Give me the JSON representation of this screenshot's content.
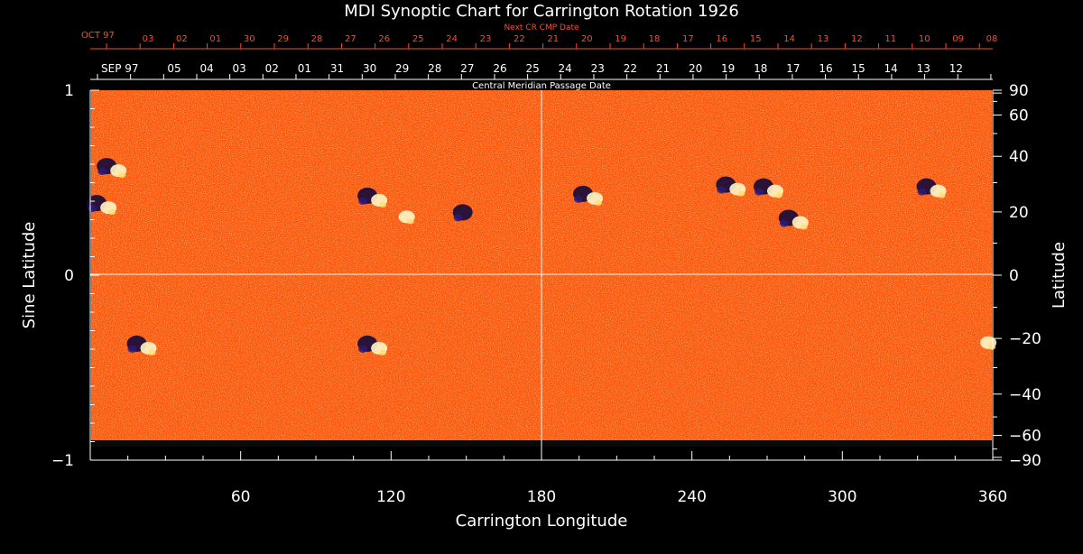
{
  "chart_data": {
    "type": "heatmap",
    "title": "MDI Synoptic Chart for Carrington Rotation 1926",
    "xlabel": "Carrington Longitude",
    "ylabel_left": "Sine Latitude",
    "ylabel_right": "Latitude",
    "xlim": [
      0,
      360
    ],
    "ylim": [
      -1,
      1
    ],
    "x_ticks": [
      60,
      120,
      180,
      240,
      300,
      360
    ],
    "y_ticks_left": [
      {
        "value": 1,
        "label": "1"
      },
      {
        "value": 0,
        "label": "0"
      },
      {
        "value": -1,
        "label": "−1"
      }
    ],
    "y_ticks_right_deg": [
      90,
      60,
      40,
      20,
      0,
      -20,
      -40,
      -60,
      -90
    ],
    "y_tick_labels_right": [
      "90",
      "60",
      "40",
      "20",
      "0",
      "−20",
      "−40",
      "−60",
      "−90"
    ],
    "top_axis_title": "Central Meridian Passage Date",
    "top_axis_month_label": "SEP 97",
    "top_axis_dates": [
      "05",
      "04",
      "03",
      "02",
      "01",
      "31",
      "30",
      "29",
      "28",
      "27",
      "26",
      "25",
      "24",
      "23",
      "22",
      "21",
      "20",
      "19",
      "18",
      "17",
      "16",
      "15",
      "14",
      "13",
      "12"
    ],
    "next_axis_title": "Next CR CMP Date",
    "next_axis_month_label": "OCT 97",
    "next_axis_dates": [
      "03",
      "02",
      "01",
      "30",
      "29",
      "28",
      "27",
      "26",
      "25",
      "24",
      "23",
      "22",
      "21",
      "20",
      "19",
      "18",
      "17",
      "16",
      "15",
      "14",
      "13",
      "12",
      "11",
      "10",
      "09",
      "08"
    ],
    "grid": "lines at longitude 180 and sine-latitude 0",
    "colors": {
      "background": "#000000",
      "field_base": "#ff5a0e",
      "negative_polarity": "#140a3a",
      "positive_polarity": "#fff6c8",
      "axis_main": "#ffffff",
      "axis_next": "#ff4a2a"
    },
    "active_regions": [
      {
        "lon": 8,
        "sinlat": 0.58,
        "polarity": "mixed"
      },
      {
        "lon": 4,
        "sinlat": 0.38,
        "polarity": "mixed"
      },
      {
        "lon": 112,
        "sinlat": 0.42,
        "polarity": "mixed"
      },
      {
        "lon": 123,
        "sinlat": 0.33,
        "polarity": "positive"
      },
      {
        "lon": 150,
        "sinlat": 0.33,
        "polarity": "negative"
      },
      {
        "lon": 20,
        "sinlat": -0.38,
        "polarity": "mixed"
      },
      {
        "lon": 112,
        "sinlat": -0.38,
        "polarity": "mixed"
      },
      {
        "lon": 198,
        "sinlat": 0.43,
        "polarity": "mixed"
      },
      {
        "lon": 255,
        "sinlat": 0.48,
        "polarity": "mixed"
      },
      {
        "lon": 270,
        "sinlat": 0.47,
        "polarity": "mixed"
      },
      {
        "lon": 280,
        "sinlat": 0.3,
        "polarity": "mixed"
      },
      {
        "lon": 335,
        "sinlat": 0.47,
        "polarity": "mixed"
      },
      {
        "lon": 355,
        "sinlat": -0.35,
        "polarity": "positive"
      }
    ]
  }
}
